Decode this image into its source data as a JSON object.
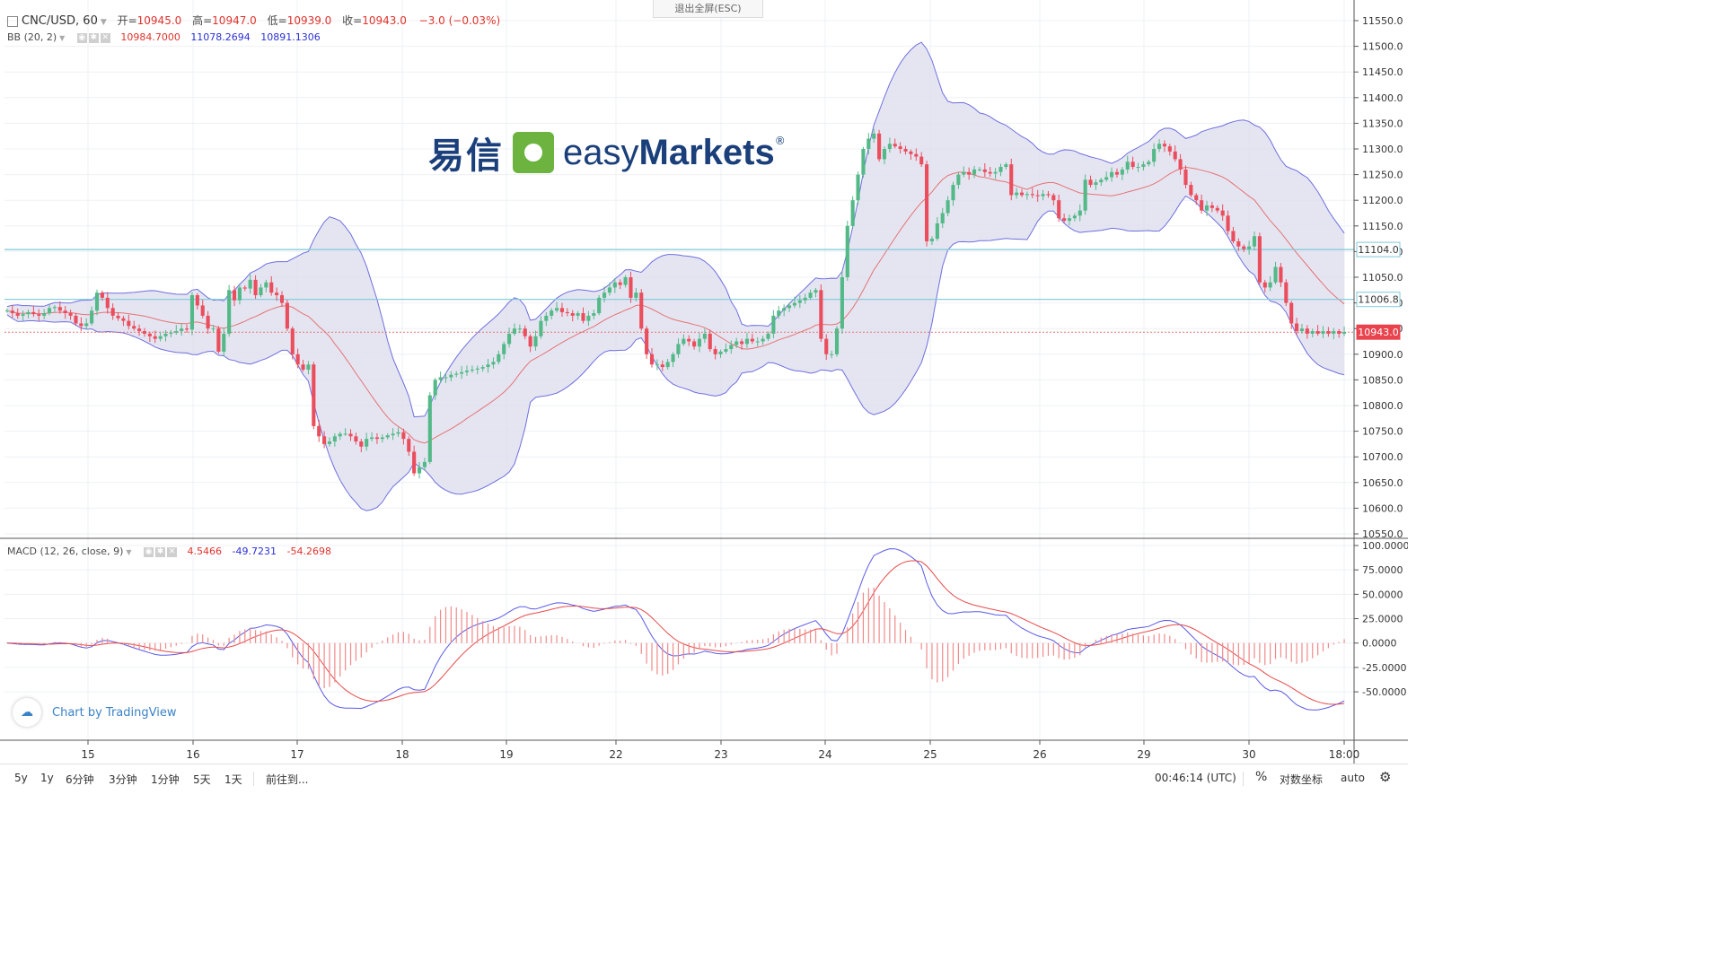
{
  "exit_fullscreen": "退出全屏(ESC)",
  "header": {
    "symbol": "CNC/USD, 60",
    "open_label": "开=",
    "open": "10945.0",
    "high_label": "高=",
    "high": "10947.0",
    "low_label": "低=",
    "low": "10939.0",
    "close_label": "收=",
    "close": "10943.0",
    "change": "−3.0 (−0.03%)"
  },
  "bb": {
    "label": "BB (20, 2)",
    "basis": "10984.7000",
    "upper": "11078.2694",
    "lower": "10891.1306"
  },
  "macd": {
    "label": "MACD (12, 26, close, 9)",
    "hist": "4.5466",
    "macd": "-49.7231",
    "signal": "-54.2698"
  },
  "logo": {
    "cn": "易信",
    "easy": "easy",
    "markets": "Markets",
    "reg": "®"
  },
  "badge": "Chart by TradingView",
  "bottom": {
    "ranges": [
      "5y",
      "1y",
      "6分钟",
      "3分钟",
      "1分钟",
      "5天",
      "1天"
    ],
    "goto": "前往到...",
    "time": "00:46:14 (UTC)",
    "pct": "%",
    "log": "对数坐标",
    "auto": "auto"
  },
  "colors": {
    "up": "#53b987",
    "down": "#eb4d5c",
    "band": "#dcdcee",
    "bandline": "#6f6fe0",
    "basis": "#e57373",
    "hline": "#7ec8d8"
  },
  "chart_data": {
    "type": "candlestick",
    "price_axis": {
      "ylim": [
        10550,
        11550
      ],
      "ticks": [
        11550,
        11500,
        11450,
        11400,
        11350,
        11300,
        11250,
        11200,
        11150,
        11100,
        11050,
        11000,
        10950,
        10900,
        10850,
        10800,
        10750,
        10700,
        10650,
        10600,
        10550
      ]
    },
    "price_labels": [
      {
        "value": 11104.0,
        "text": "11104.0"
      },
      {
        "value": 11006.8,
        "text": "11006.8"
      },
      {
        "value": 10943.0,
        "text": "10943.0"
      }
    ],
    "horizontal_lines": [
      11104.0,
      11006.8
    ],
    "x_ticks": [
      "15",
      "16",
      "17",
      "18",
      "19",
      "22",
      "23",
      "24",
      "25",
      "26",
      "29",
      "30",
      "18:00"
    ],
    "close": [
      10985,
      10980,
      10975,
      10978,
      10982,
      10978,
      10975,
      10980,
      10990,
      10992,
      10985,
      10980,
      10975,
      10960,
      10955,
      10960,
      10985,
      11020,
      11010,
      10990,
      10975,
      10970,
      10965,
      10955,
      10950,
      10945,
      10940,
      10935,
      10930,
      10935,
      10940,
      10942,
      10945,
      10950,
      10948,
      11015,
      10995,
      10975,
      10950,
      10950,
      10905,
      10940,
      11025,
      11005,
      11030,
      11028,
      11045,
      11015,
      11030,
      11040,
      11020,
      11015,
      11000,
      10950,
      10900,
      10880,
      10870,
      10880,
      10760,
      10740,
      10725,
      10730,
      10740,
      10745,
      10745,
      10740,
      10730,
      10720,
      10735,
      10738,
      10735,
      10738,
      10742,
      10745,
      10748,
      10735,
      10710,
      10668,
      10680,
      10690,
      10820,
      10850,
      10855,
      10855,
      10860,
      10862,
      10865,
      10868,
      10870,
      10872,
      10875,
      10880,
      10885,
      10900,
      10920,
      10940,
      10950,
      10950,
      10935,
      10915,
      10935,
      10965,
      10975,
      10985,
      10990,
      10982,
      10980,
      10975,
      10980,
      10965,
      10975,
      10980,
      11010,
      11020,
      11030,
      11040,
      11035,
      11050,
      11010,
      11020,
      10950,
      10900,
      10880,
      10880,
      10875,
      10885,
      10900,
      10920,
      10930,
      10925,
      10915,
      10930,
      10940,
      10910,
      10900,
      10905,
      10910,
      10918,
      10925,
      10920,
      10930,
      10925,
      10925,
      10930,
      10940,
      10975,
      10985,
      10990,
      10995,
      11000,
      11005,
      11010,
      11020,
      11025,
      10930,
      10900,
      10900,
      10950,
      11050,
      11150,
      11200,
      11250,
      11300,
      11320,
      11330,
      11280,
      11300,
      11310,
      11305,
      11300,
      11295,
      11290,
      11285,
      11270,
      11120,
      11125,
      11155,
      11175,
      11200,
      11230,
      11250,
      11255,
      11250,
      11260,
      11260,
      11255,
      11252,
      11255,
      11265,
      11270,
      11210,
      11215,
      11210,
      11212,
      11210,
      11208,
      11212,
      11210,
      11200,
      11165,
      11160,
      11165,
      11170,
      11180,
      11240,
      11230,
      11235,
      11240,
      11245,
      11255,
      11250,
      11260,
      11275,
      11265,
      11265,
      11270,
      11275,
      11300,
      11310,
      11305,
      11295,
      11280,
      11260,
      11230,
      11210,
      11200,
      11180,
      11190,
      11185,
      11180,
      11170,
      11140,
      11120,
      11110,
      11105,
      11110,
      11130,
      11040,
      11030,
      11040,
      11070,
      11040,
      11000,
      10960,
      10945,
      10950,
      10940,
      10945,
      10940,
      10945,
      10940,
      10945,
      10940,
      10943
    ]
  },
  "macd_axis": {
    "ylim": [
      -72,
      100
    ],
    "ticks": [
      100,
      75,
      50,
      25,
      0,
      -25,
      -50
    ],
    "tick_text": [
      "100.0000",
      "75.0000",
      "50.0000",
      "25.0000",
      "0.0000",
      "-25.0000",
      "-50.0000"
    ]
  }
}
